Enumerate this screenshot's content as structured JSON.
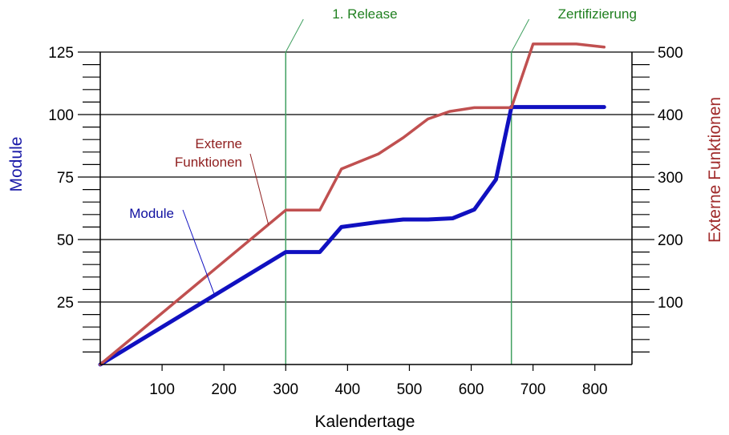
{
  "chart_data": {
    "type": "line",
    "xlabel": "Kalendertage",
    "ylabel_left": "Module",
    "ylabel_right": "Externe Funktionen",
    "xlim": [
      0,
      860
    ],
    "ylim_left": [
      0,
      125
    ],
    "ylim_right": [
      0,
      500
    ],
    "x_ticks": [
      100,
      200,
      300,
      400,
      500,
      600,
      700,
      800
    ],
    "y_left_ticks": [
      25,
      50,
      75,
      100,
      125
    ],
    "y_right_ticks": [
      100,
      200,
      300,
      400,
      500
    ],
    "grid_y": true,
    "colors": {
      "module": "#1010c0",
      "externe": "#c05050",
      "milestone": "#40a060",
      "module_label": "#1010a0",
      "externe_label": "#902020",
      "milestone_label": "#208020"
    },
    "series": [
      {
        "name": "Module",
        "axis": "left",
        "x": [
          0,
          300,
          355,
          390,
          450,
          490,
          530,
          570,
          605,
          640,
          665,
          700,
          770,
          815
        ],
        "y": [
          0,
          45,
          45,
          55,
          57,
          58,
          58,
          58.5,
          62,
          74,
          103,
          103,
          103,
          103
        ]
      },
      {
        "name": "Externe Funktionen",
        "axis": "right",
        "x": [
          0,
          300,
          355,
          390,
          450,
          490,
          530,
          565,
          605,
          640,
          665,
          700,
          770,
          815
        ],
        "y": [
          0,
          247,
          247,
          313,
          337,
          363,
          393,
          405,
          411,
          411,
          411,
          513,
          513,
          508
        ]
      }
    ],
    "milestones": [
      {
        "x": 300,
        "label": "1. Release"
      },
      {
        "x": 665,
        "label": "Zertifizierung"
      }
    ],
    "annotations": [
      {
        "text_lines": [
          "Externe",
          "Funktionen"
        ],
        "series": "Externe Funktionen",
        "point_x": 272
      },
      {
        "text_lines": [
          "Module"
        ],
        "series": "Module",
        "point_x": 185
      }
    ]
  }
}
